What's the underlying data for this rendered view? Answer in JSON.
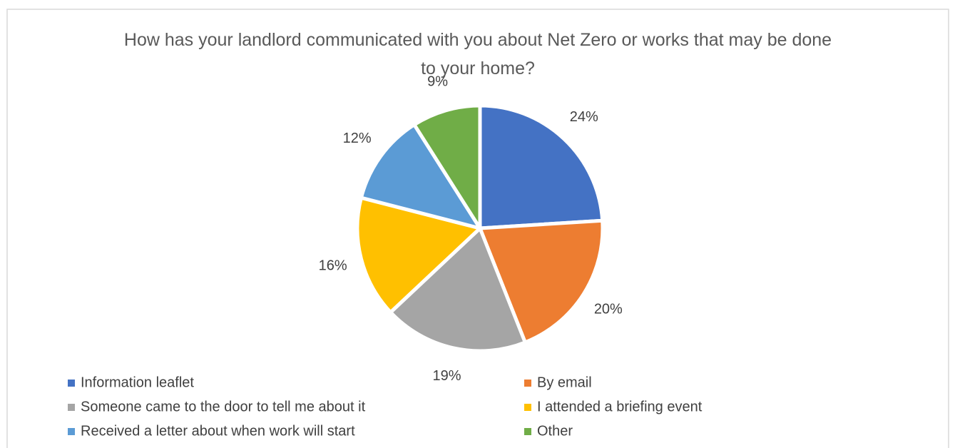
{
  "chart_data": {
    "type": "pie",
    "title": "How has your landlord communicated with you about Net Zero or works that may be done to your home?",
    "categories": [
      "Information leaflet",
      "By email",
      "Someone came to the door to tell me about it",
      "I attended a briefing event",
      "Received a letter about when work will start",
      "Other"
    ],
    "values": [
      24,
      20,
      19,
      16,
      12,
      9
    ],
    "value_labels": [
      "24%",
      "20%",
      "19%",
      "16%",
      "12%",
      "9%"
    ],
    "colors": [
      "#4472c4",
      "#ed7d31",
      "#a5a5a5",
      "#ffc000",
      "#5b9bd5",
      "#70ad47"
    ],
    "legend": "bottom"
  }
}
